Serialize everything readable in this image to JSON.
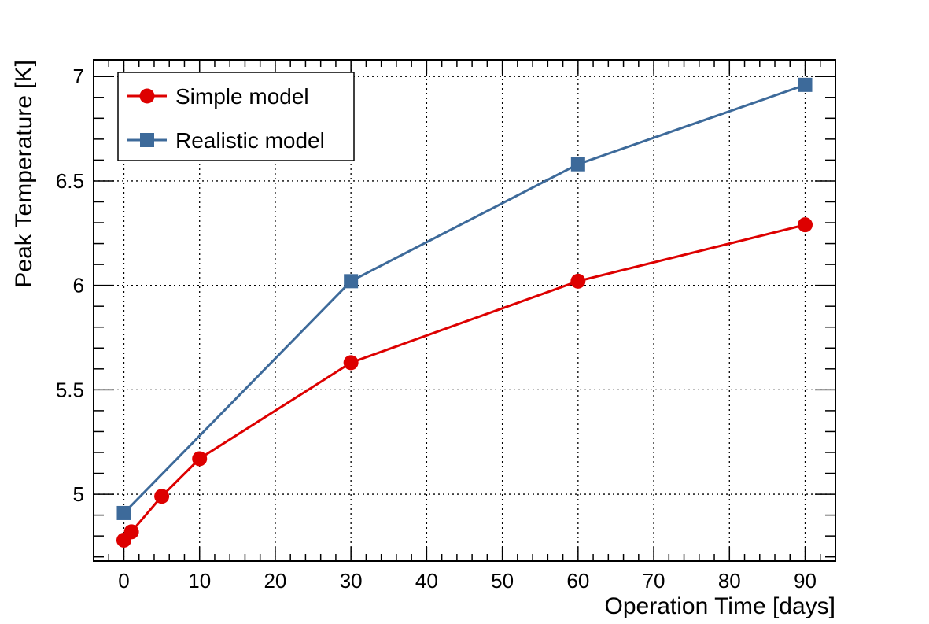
{
  "chart_data": {
    "type": "line",
    "xlabel": "Operation Time [days]",
    "ylabel": "Peak Temperature [K]",
    "xlim": [
      -4,
      94
    ],
    "ylim": [
      4.68,
      7.08
    ],
    "x_ticks": [
      0,
      10,
      20,
      30,
      40,
      50,
      60,
      70,
      80,
      90
    ],
    "y_ticks": [
      5,
      5.5,
      6,
      6.5,
      7
    ],
    "grid": true,
    "legend_position": "top-left",
    "series": [
      {
        "name": "Simple model",
        "color": "#dd0000",
        "marker": "circle",
        "x": [
          0,
          1,
          5,
          10,
          30,
          60,
          90
        ],
        "y": [
          4.78,
          4.82,
          4.99,
          5.17,
          5.63,
          6.02,
          6.29
        ]
      },
      {
        "name": "Realistic model",
        "color": "#3d6a9a",
        "marker": "square",
        "x": [
          0,
          30,
          60,
          90
        ],
        "y": [
          4.91,
          6.02,
          6.58,
          6.96
        ]
      }
    ]
  }
}
